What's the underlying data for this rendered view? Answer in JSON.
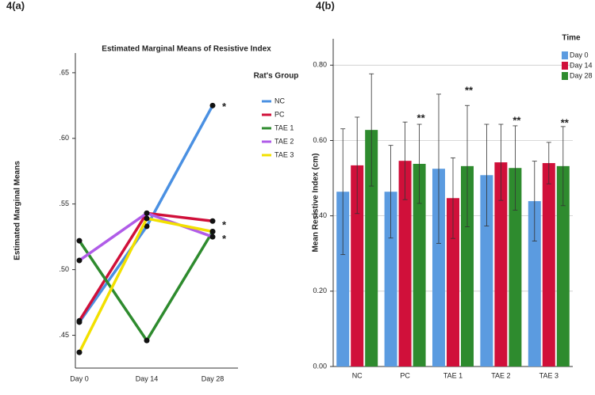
{
  "chart_data": [
    {
      "type": "line",
      "panel_label": "4(a)",
      "title": "Estimated Marginal Means of Resistive Index",
      "y_label": "Estimated Marginal Means",
      "legend_title": "Rat's Group",
      "categories": [
        "Day 0",
        "Day 14",
        "Day 28"
      ],
      "ylim": [
        0.425,
        0.665
      ],
      "yticks": [
        {
          "value": 0.45,
          "label": ".45"
        },
        {
          "value": 0.5,
          "label": ".50"
        },
        {
          "value": 0.55,
          "label": ".55"
        },
        {
          "value": 0.6,
          "label": ".60"
        },
        {
          "value": 0.65,
          "label": ".65"
        }
      ],
      "series": [
        {
          "name": "NC",
          "color": "#4a90e2",
          "values": [
            0.46,
            0.533,
            0.625
          ]
        },
        {
          "name": "PC",
          "color": "#d0103a",
          "values": [
            0.461,
            0.543,
            0.537
          ]
        },
        {
          "name": "TAE 1",
          "color": "#2e8b2e",
          "values": [
            0.522,
            0.446,
            0.529
          ]
        },
        {
          "name": "TAE 2",
          "color": "#b05ce8",
          "values": [
            0.507,
            0.543,
            0.525
          ]
        },
        {
          "name": "TAE 3",
          "color": "#f2e000",
          "values": [
            0.437,
            0.539,
            0.529
          ]
        }
      ],
      "annotations": [
        "*",
        "*",
        "*"
      ]
    },
    {
      "type": "bar",
      "panel_label": "4(b)",
      "y_label": "Mean Resistive Index (cm)",
      "legend_title": "Time",
      "categories": [
        "NC",
        "PC",
        "TAE 1",
        "TAE 2",
        "TAE 3"
      ],
      "ylim": [
        0,
        0.87
      ],
      "yticks": [
        {
          "value": 0,
          "label": "0.00"
        },
        {
          "value": 0.2,
          "label": "0.20"
        },
        {
          "value": 0.4,
          "label": "0.40"
        },
        {
          "value": 0.6,
          "label": "0.60"
        },
        {
          "value": 0.8,
          "label": "0.80"
        }
      ],
      "grid": true,
      "series": [
        {
          "name": "Day 0",
          "color": "#5b9be0",
          "values": [
            0.464,
            0.464,
            0.525,
            0.508,
            0.439
          ],
          "errors": [
            0.167,
            0.123,
            0.198,
            0.135,
            0.106
          ]
        },
        {
          "name": "Day 14",
          "color": "#d0103a",
          "values": [
            0.534,
            0.546,
            0.447,
            0.542,
            0.54
          ],
          "errors": [
            0.128,
            0.103,
            0.107,
            0.101,
            0.055
          ]
        },
        {
          "name": "Day 28",
          "color": "#2e8b2e",
          "values": [
            0.628,
            0.538,
            0.532,
            0.527,
            0.532
          ],
          "errors": [
            0.149,
            0.105,
            0.161,
            0.112,
            0.105
          ]
        }
      ],
      "annotations": [
        "**",
        "**",
        "**",
        "**"
      ]
    }
  ]
}
